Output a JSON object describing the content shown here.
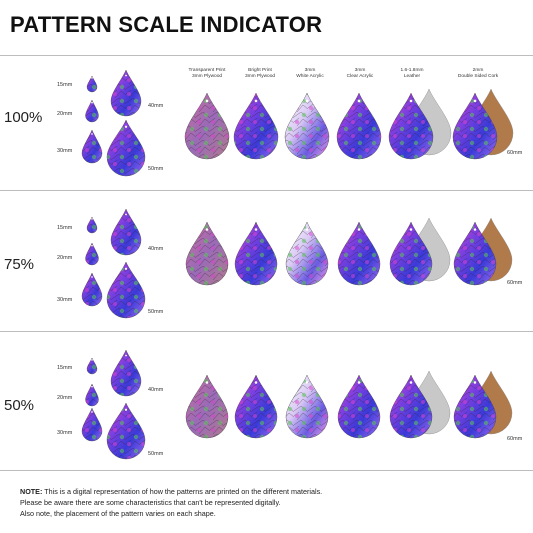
{
  "title": "PATTERN SCALE INDICATOR",
  "materials": [
    {
      "line1": "Transparent Print",
      "line2": "3mm Plywood"
    },
    {
      "line1": "Bright Print",
      "line2": "3mm Plywood"
    },
    {
      "line1": "3mm",
      "line2": "White Acrylic"
    },
    {
      "line1": "3mm",
      "line2": "Clear Acrylic"
    },
    {
      "line1": "1.6-1.8mm",
      "line2": "Leather"
    },
    {
      "line1": "2mm",
      "line2": "Double Sided Cork"
    }
  ],
  "rows": [
    {
      "scale": "100%",
      "sizes": [
        "15mm",
        "20mm",
        "30mm",
        "40mm",
        "50mm"
      ],
      "size_60": "60mm"
    },
    {
      "scale": "75%",
      "sizes": [
        "15mm",
        "20mm",
        "30mm",
        "40mm",
        "50mm"
      ],
      "size_60": "60mm"
    },
    {
      "scale": "50%",
      "sizes": [
        "15mm",
        "20mm",
        "30mm",
        "40mm",
        "50mm"
      ],
      "size_60": "60mm"
    }
  ],
  "note": {
    "label": "NOTE:",
    "line1": "This is a digital representation of how the patterns are printed on the different materials.",
    "line2": "Please be aware there are some characteristics that can't be represented digitally.",
    "line3": "Also note, the placement of the pattern varies on each shape."
  },
  "colors": {
    "purple": "#7b3fe0",
    "magenta": "#e040d0",
    "blue": "#3a3ad8",
    "green": "#5ac85a",
    "wood": "#b48a5a",
    "cork": "#b07a4a",
    "leather_back": "#c8c8c8"
  }
}
